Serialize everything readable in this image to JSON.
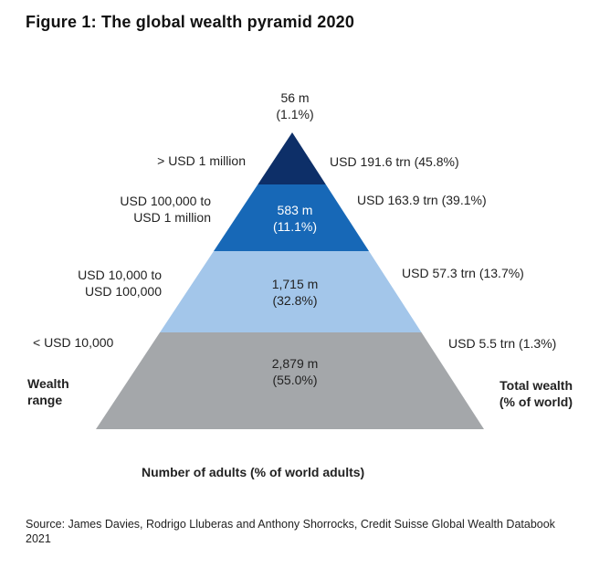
{
  "title": "Figure 1: The global wealth pyramid 2020",
  "chart_data": {
    "type": "pyramid",
    "levels": [
      {
        "range": "> USD 1 million",
        "adults": "56 m",
        "adults_pct": "(1.1%)",
        "wealth": "USD 191.6 trn (45.8%)",
        "color": "#0d2f68"
      },
      {
        "range": "USD 100,000 to USD 1 million",
        "range_line1": "USD 100,000 to",
        "range_line2": "USD 1 million",
        "adults": "583 m",
        "adults_pct": "(11.1%)",
        "wealth": "USD 163.9 trn (39.1%)",
        "color": "#1768b7"
      },
      {
        "range": "USD 10,000 to USD 100,000",
        "range_line1": "USD 10,000 to",
        "range_line2": "USD 100,000",
        "adults": "1,715 m",
        "adults_pct": "(32.8%)",
        "wealth": "USD 57.3 trn (13.7%)",
        "color": "#a3c6ea"
      },
      {
        "range": "< USD 10,000",
        "adults": "2,879 m",
        "adults_pct": "(55.0%)",
        "wealth": "USD 5.5 trn (1.3%)",
        "color": "#a4a7aa"
      }
    ],
    "left_axis_label": [
      "Wealth",
      "range"
    ],
    "right_axis_label": [
      "Total wealth",
      "(% of world)"
    ],
    "bottom_label": "Number of adults (% of world adults)"
  },
  "source": "Source: James Davies, Rodrigo Lluberas and Anthony Shorrocks, Credit Suisse Global Wealth Databook 2021"
}
